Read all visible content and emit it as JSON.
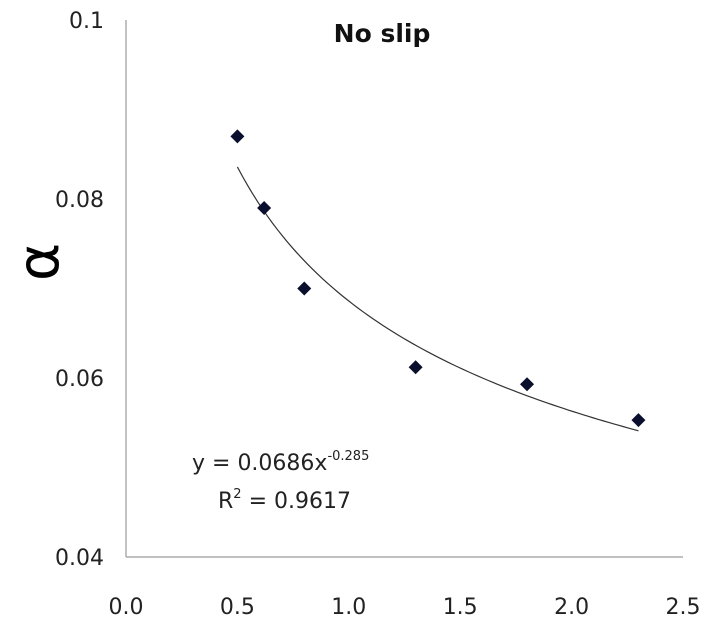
{
  "chart_data": {
    "type": "scatter",
    "title": "No slip",
    "xlabel": "",
    "ylabel": "α",
    "xlim": [
      0.0,
      2.5
    ],
    "ylim": [
      0.04,
      0.1
    ],
    "x_ticks": [
      "0.0",
      "0.5",
      "1.0",
      "1.5",
      "2.0",
      "2.5"
    ],
    "x_tick_values": [
      0.0,
      0.5,
      1.0,
      1.5,
      2.0,
      2.5
    ],
    "y_ticks": [
      "0.04",
      "0.06",
      "0.08",
      "0.1"
    ],
    "y_tick_values": [
      0.04,
      0.06,
      0.08,
      0.1
    ],
    "grid": false,
    "legend": "none",
    "series": [
      {
        "marker": "diamond",
        "color": "#0a0f2e",
        "x": [
          0.5,
          0.62,
          0.8,
          1.3,
          1.8,
          2.3
        ],
        "y": [
          0.087,
          0.079,
          0.07,
          0.0612,
          0.0593,
          0.0553
        ]
      }
    ],
    "trendline": {
      "type": "power",
      "a": 0.0686,
      "b": -0.285,
      "x_range": [
        0.5,
        2.3
      ],
      "color": "#333333"
    },
    "annotations": {
      "equation_main": "y = 0.0686x",
      "equation_exp": "-0.285",
      "r2_main": "R",
      "r2_sup": "2",
      "r2_value": " = 0.9617"
    }
  }
}
